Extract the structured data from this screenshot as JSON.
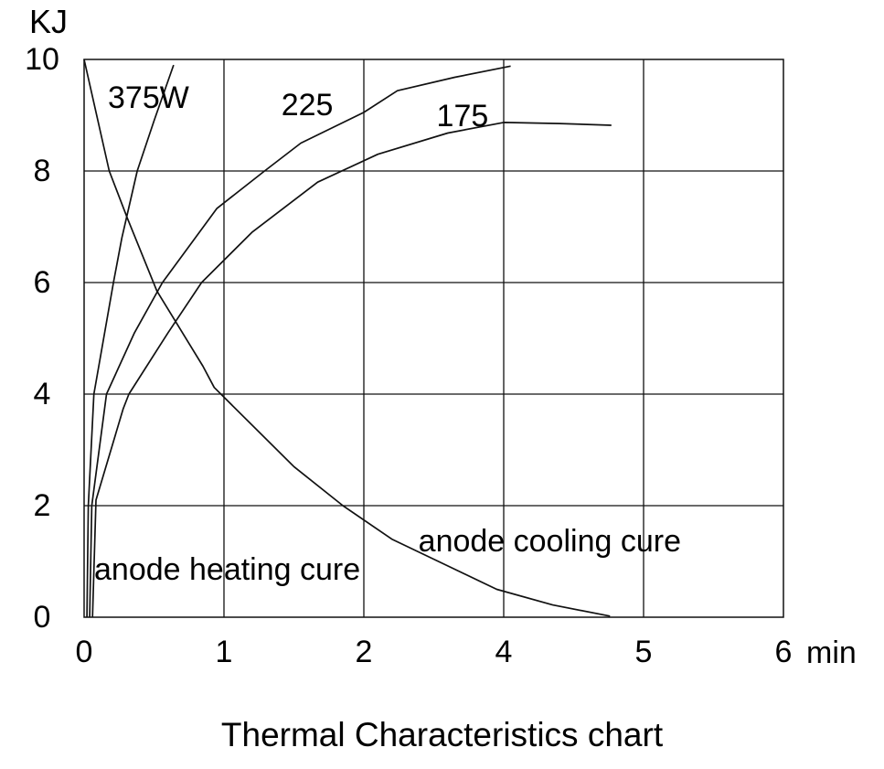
{
  "chart_data": {
    "type": "line",
    "title": "Thermal Characteristics chart",
    "y_axis": {
      "label": "KJ",
      "ticks": [
        10,
        8,
        6,
        4,
        2,
        0
      ],
      "range": [
        0,
        10
      ],
      "gridlines": true
    },
    "x_axis": {
      "tick_labels": [
        "0",
        "1",
        "2",
        "4",
        "5",
        "6"
      ],
      "tick_positions": [
        0,
        1,
        2,
        3,
        4,
        5
      ],
      "unit_label": "min",
      "gridlines": true
    },
    "line_color": "#111111",
    "series": [
      {
        "name": "anode-heating-375W",
        "label": "375W",
        "label_at": [
          0.17,
          9.31
        ],
        "points": [
          [
            0.02,
            0
          ],
          [
            0.03,
            2
          ],
          [
            0.07,
            4
          ],
          [
            0.21,
            6
          ],
          [
            0.27,
            6.8
          ],
          [
            0.38,
            8
          ],
          [
            0.5,
            8.9
          ],
          [
            0.64,
            9.9
          ]
        ]
      },
      {
        "name": "anode-heating-225",
        "label": "225",
        "label_at": [
          1.41,
          9.18
        ],
        "points": [
          [
            0.04,
            0
          ],
          [
            0.055,
            2
          ],
          [
            0.16,
            4
          ],
          [
            0.36,
            5.1
          ],
          [
            0.56,
            6
          ],
          [
            0.95,
            7.33
          ],
          [
            1.29,
            8
          ],
          [
            1.55,
            8.5
          ],
          [
            2.0,
            9.05
          ],
          [
            2.24,
            9.44
          ],
          [
            2.65,
            9.68
          ],
          [
            3.05,
            9.88
          ]
        ]
      },
      {
        "name": "anode-heating-175",
        "label": "175",
        "label_at": [
          2.52,
          8.98
        ],
        "points": [
          [
            0.06,
            0
          ],
          [
            0.085,
            2.1
          ],
          [
            0.28,
            3.74
          ],
          [
            0.32,
            4
          ],
          [
            0.6,
            5.1
          ],
          [
            0.84,
            6
          ],
          [
            1.2,
            6.9
          ],
          [
            1.67,
            7.8
          ],
          [
            2.1,
            8.3
          ],
          [
            2.6,
            8.68
          ],
          [
            3.0,
            8.87
          ],
          [
            3.4,
            8.85
          ],
          [
            3.77,
            8.82
          ]
        ]
      },
      {
        "name": "anode-cooling",
        "label": "anode cooling cure",
        "label_at": [
          2.39,
          1.36
        ],
        "points": [
          [
            0,
            10
          ],
          [
            0.18,
            8
          ],
          [
            0.31,
            7.15
          ],
          [
            0.52,
            5.85
          ],
          [
            0.85,
            4.5
          ],
          [
            0.93,
            4.12
          ],
          [
            1.5,
            2.7
          ],
          [
            1.85,
            2.0
          ],
          [
            2.2,
            1.4
          ],
          [
            2.6,
            0.92
          ],
          [
            2.95,
            0.5
          ],
          [
            3.35,
            0.22
          ],
          [
            3.76,
            0.02
          ]
        ]
      }
    ],
    "annotations": [
      {
        "text": "anode heating cure",
        "at": [
          0.072,
          0.85
        ]
      }
    ]
  }
}
